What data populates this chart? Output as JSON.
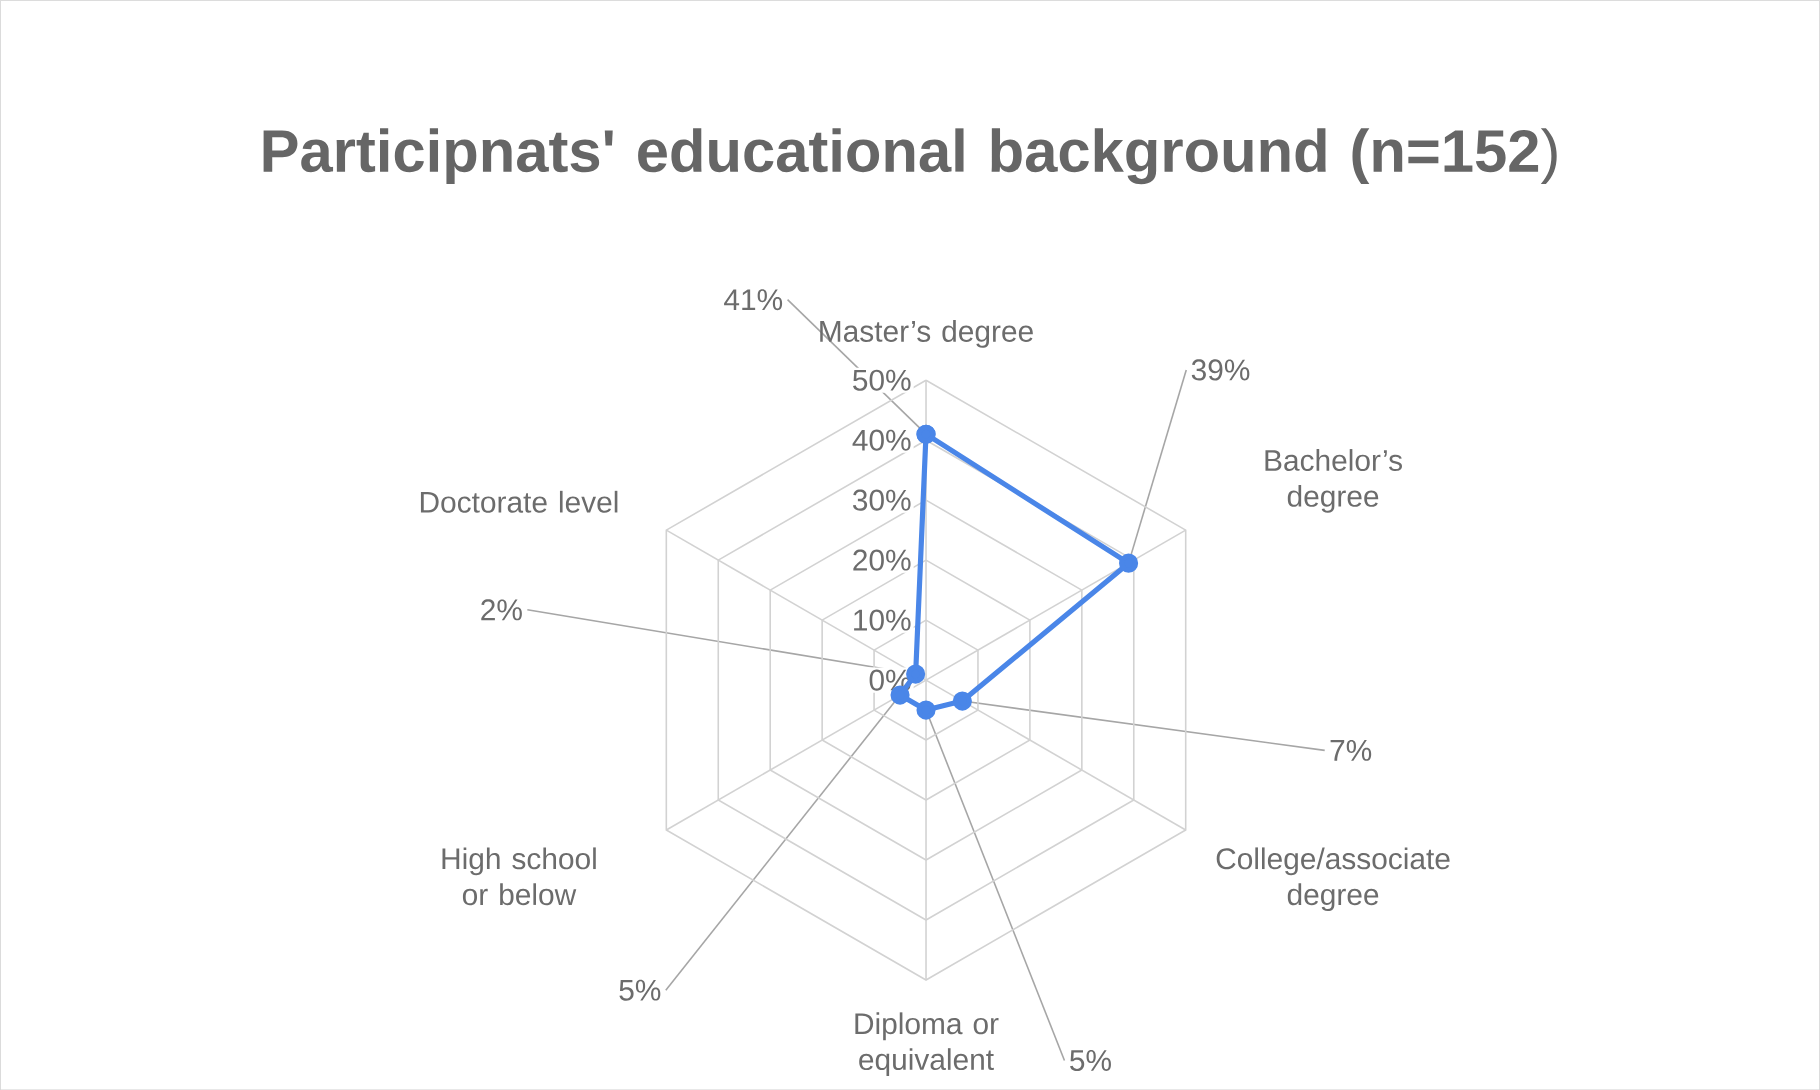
{
  "chart_data": {
    "type": "radar",
    "title": "**Participnats' educational background (n=152**)",
    "categories": [
      "Master’s degree",
      "Bachelor’s degree",
      "College/associate degree",
      "Diploma or equivalent",
      "High school or below",
      "Doctorate level"
    ],
    "series": [
      {
        "color": "#4a86e8",
        "values": [
          41,
          39,
          7,
          5,
          5,
          2
        ],
        "value_labels": [
          "41%",
          "39%",
          "7%",
          "5%",
          "5%",
          "2%"
        ]
      }
    ],
    "ylim": [
      0,
      50
    ],
    "yticks": [
      {
        "value": 0,
        "label": "0%"
      },
      {
        "value": 10,
        "label": "10%"
      },
      {
        "value": 20,
        "label": "20%"
      },
      {
        "value": 30,
        "label": "30%"
      },
      {
        "value": 40,
        "label": "40%"
      },
      {
        "value": 50,
        "label": "50%"
      }
    ],
    "grid": true,
    "marker": "circle"
  }
}
